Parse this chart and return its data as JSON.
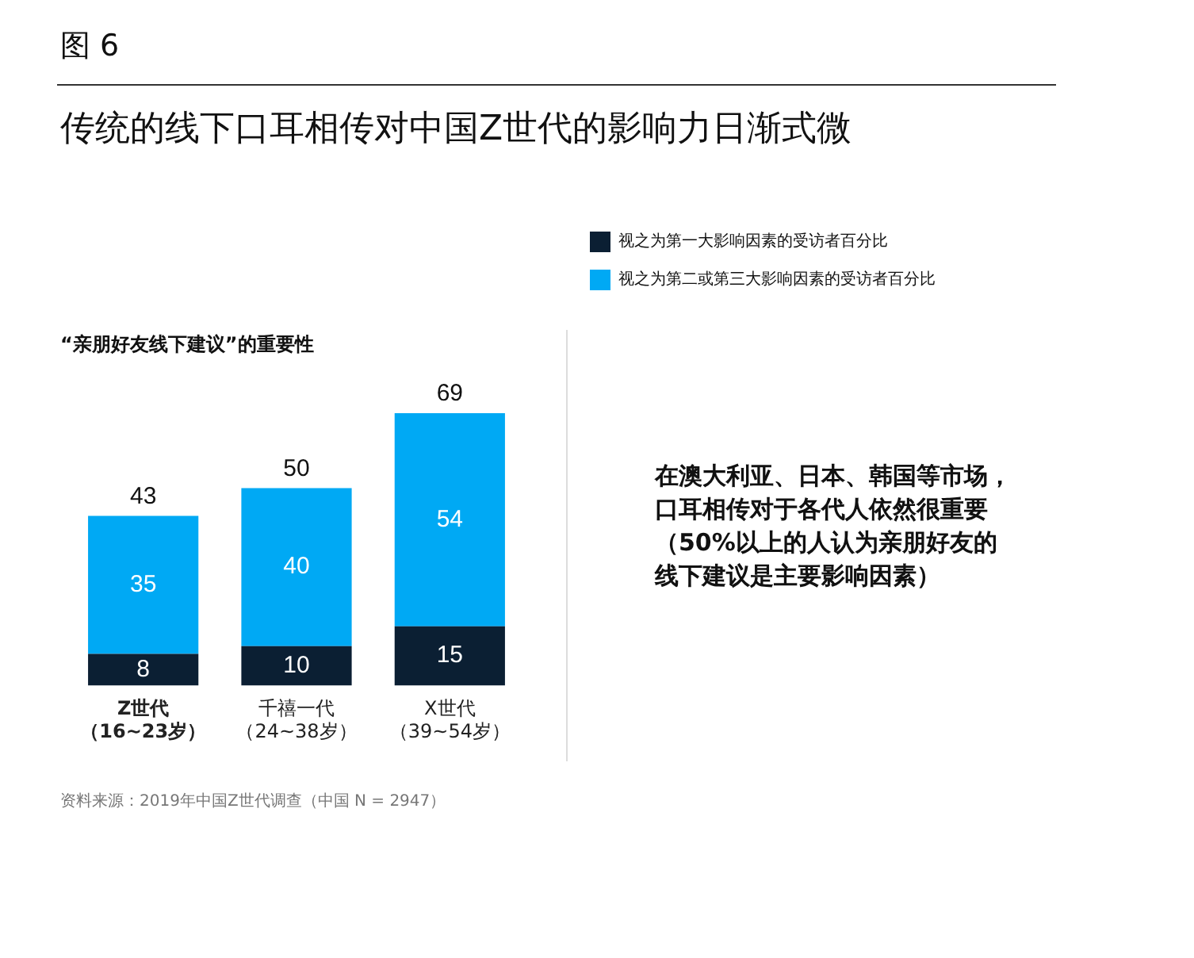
{
  "chart_data": {
    "type": "bar",
    "title": "传统的线下口耳相传对中国Z世代的影响力日渐式微",
    "subtitle": "“亲朋好友线下建议”的重要性",
    "categories": [
      "Z世代（16~23岁）",
      "千禧一代（24~38岁）",
      "X世代（39~54岁）"
    ],
    "series": [
      {
        "name": "视之为第一大影响因素的受访者百分比",
        "color": "#0b1f33",
        "values": [
          8,
          10,
          15
        ]
      },
      {
        "name": "视之为第二或第三大影响因素的受访者百分比",
        "color": "#00a9f4",
        "values": [
          35,
          40,
          54
        ]
      }
    ],
    "stacked": true,
    "data_labels": true,
    "totals": [
      "43",
      "50",
      "69"
    ],
    "legend": "top right",
    "grid": false,
    "annotations": [
      "图 6",
      "在澳大利亚、日本、韩国等市场，口耳相传对于各代人依然很重要（50%以上的人认为亲朋好友的线下建议是主要影响因素）",
      "资料来源：2019年中国Z世代调查（中国 N = 2947）"
    ]
  }
}
